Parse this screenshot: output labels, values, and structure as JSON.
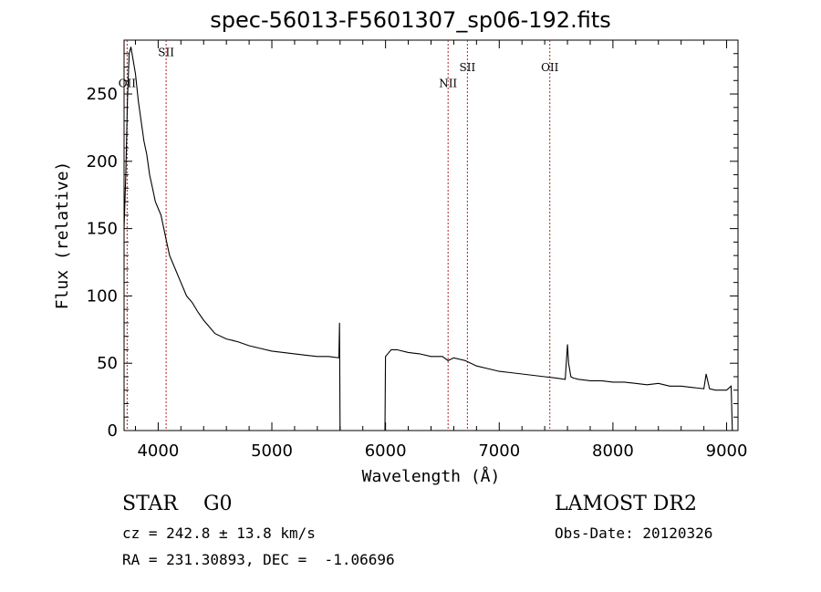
{
  "chart_data": {
    "type": "line",
    "title": "spec-56013-F5601307_sp06-192.fits",
    "xlabel": "Wavelength (Å)",
    "ylabel": "Flux (relative)",
    "xlim": [
      3700,
      9100
    ],
    "ylim": [
      0,
      290
    ],
    "x_ticks": [
      4000,
      5000,
      6000,
      7000,
      8000,
      9000
    ],
    "y_ticks": [
      0,
      50,
      100,
      150,
      200,
      250
    ],
    "grid": false,
    "line_color": "#000000",
    "marker_color": "#b22222",
    "series": [
      {
        "x": [
          3700,
          3715,
          3730,
          3745,
          3760,
          3780,
          3800,
          3825,
          3850,
          3875,
          3900,
          3925,
          3950,
          3975,
          4000,
          4025,
          4050,
          4075,
          4100,
          4150,
          4200,
          4250,
          4300,
          4350,
          4400,
          4450,
          4500,
          4600,
          4700,
          4800,
          4900,
          5000,
          5100,
          5200,
          5300,
          5400,
          5500,
          5590,
          5595,
          5600,
          5605,
          5990,
          5995,
          6000,
          6050,
          6100,
          6200,
          6300,
          6400,
          6500,
          6550,
          6600,
          6700,
          6800,
          6900,
          7000,
          7100,
          7200,
          7300,
          7400,
          7500,
          7580,
          7600,
          7610,
          7630,
          7650,
          7700,
          7800,
          7900,
          8000,
          8100,
          8200,
          8300,
          8400,
          8500,
          8600,
          8700,
          8800,
          8820,
          8850,
          8900,
          9000,
          9040,
          9050
        ],
        "y": [
          150,
          190,
          245,
          280,
          285,
          275,
          265,
          245,
          230,
          215,
          205,
          190,
          180,
          170,
          165,
          160,
          150,
          140,
          130,
          120,
          110,
          100,
          95,
          88,
          82,
          77,
          72,
          68,
          66,
          63,
          61,
          59,
          58,
          57,
          56,
          55,
          55,
          54,
          80,
          0,
          0,
          0,
          0,
          55,
          60,
          60,
          58,
          57,
          55,
          55,
          52,
          54,
          52,
          48,
          46,
          44,
          43,
          42,
          41,
          40,
          39,
          38,
          64,
          50,
          40,
          39,
          38,
          37,
          37,
          36,
          36,
          35,
          34,
          35,
          33,
          33,
          32,
          31,
          42,
          31,
          30,
          30,
          33,
          0
        ]
      }
    ],
    "line_markers": [
      {
        "label": "OII",
        "x": 3727,
        "label_y": 255
      },
      {
        "label": "SII",
        "x": 4070,
        "label_y": 278
      },
      {
        "label": "NII",
        "x": 6550,
        "label_y": 255
      },
      {
        "label": "SII",
        "x": 6720,
        "label_y": 267
      },
      {
        "label": "OII",
        "x": 7445,
        "label_y": 267
      }
    ]
  },
  "info": {
    "class_line": "STAR    G0",
    "survey": "LAMOST DR2",
    "cz": "cz = 242.8 ± 13.8 km/s",
    "obs_date": "Obs-Date: 20120326",
    "radec": "RA = 231.30893, DEC =  -1.06696"
  }
}
